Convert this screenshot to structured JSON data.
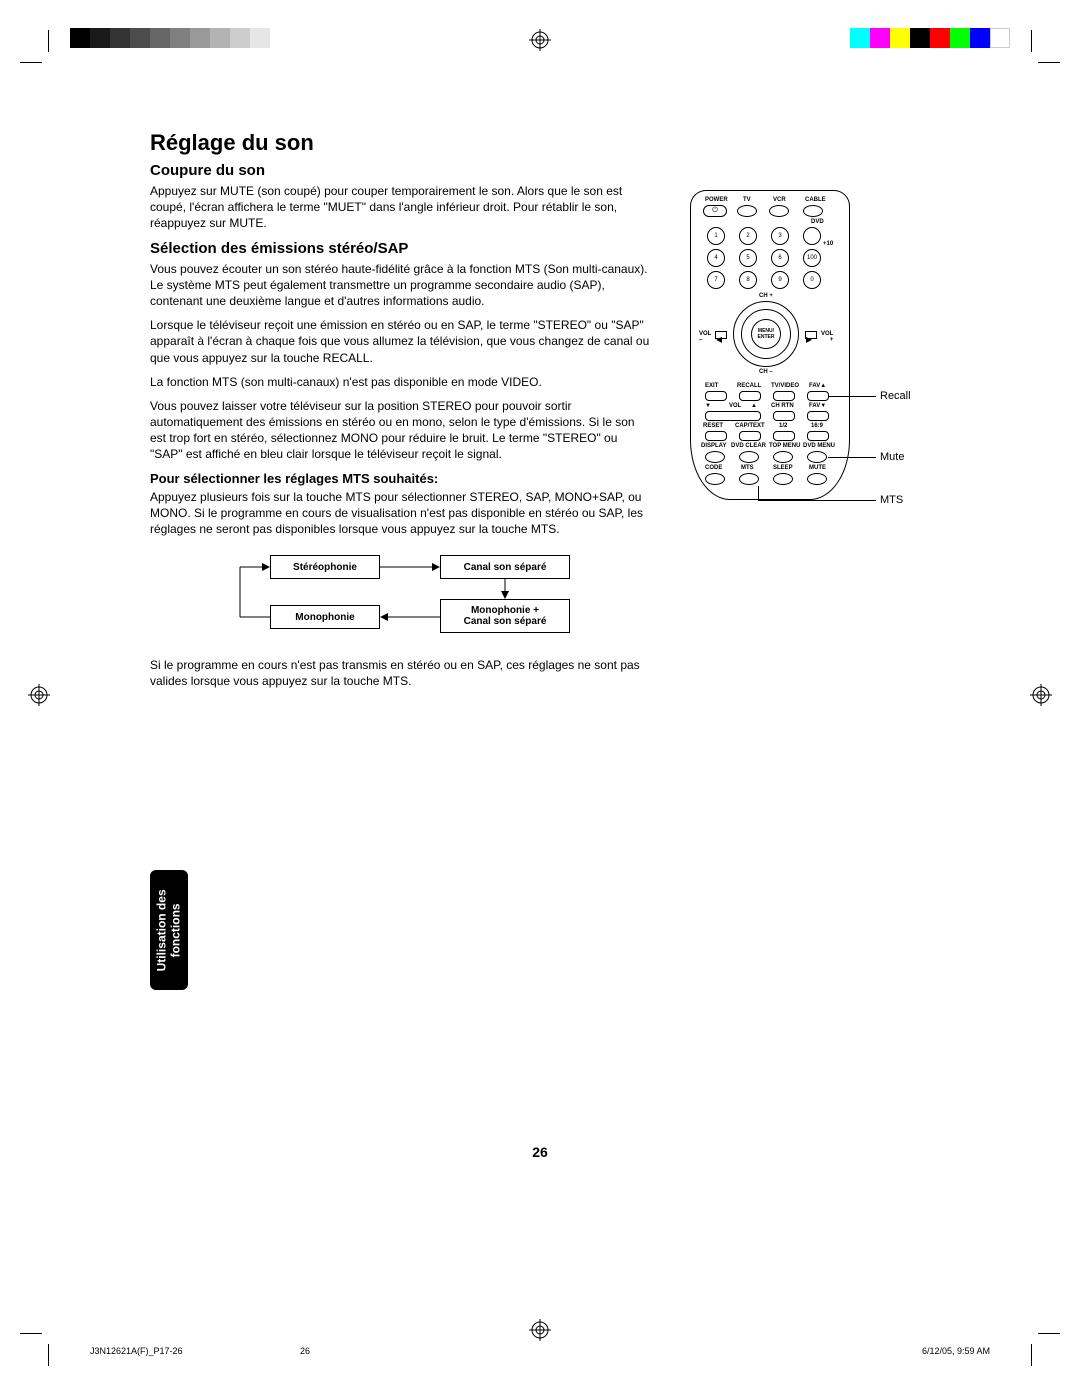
{
  "colorbars": {
    "grey": [
      "#000000",
      "#1a1a1a",
      "#333333",
      "#4d4d4d",
      "#666666",
      "#808080",
      "#999999",
      "#b3b3b3",
      "#cccccc",
      "#e6e6e6"
    ],
    "cmyk": [
      "#00ffff",
      "#ff00ff",
      "#ffff00",
      "#000000",
      "#ff0000",
      "#00ff00",
      "#0000ff",
      "#ffffff"
    ]
  },
  "title": "Réglage du son",
  "section1": {
    "heading": "Coupure du son",
    "p1": "Appuyez sur MUTE (son coupé) pour couper temporairement le son. Alors que le son est coupé, l'écran affichera le terme \"MUET\" dans l'angle inférieur droit. Pour rétablir le son, réappuyez sur MUTE."
  },
  "section2": {
    "heading": "Sélection des émissions stéréo/SAP",
    "p1": "Vous pouvez écouter un son stéréo haute-fidélité grâce à la fonction MTS (Son multi-canaux). Le système MTS peut également transmettre un programme secondaire audio (SAP), contenant une deuxième langue et d'autres informations audio.",
    "p2": "Lorsque le téléviseur reçoit une émission en stéréo ou en SAP, le terme \"STEREO\" ou \"SAP\" apparaît à l'écran à chaque fois que vous allumez la télévision, que vous changez de canal ou que vous appuyez sur la touche RECALL.",
    "p3": "La fonction MTS (son multi-canaux) n'est pas disponible en mode VIDEO.",
    "p4": "Vous pouvez laisser votre téléviseur sur la position STEREO pour pouvoir sortir automatiquement des émissions en stéréo ou en mono, selon le type d'émissions. Si le son est trop fort en stéréo, sélectionnez MONO pour réduire le bruit. Le terme \"STEREO\" ou \"SAP\" est affiché en bleu clair lorsque le téléviseur reçoit le signal."
  },
  "section3": {
    "heading": "Pour sélectionner les réglages MTS souhaités:",
    "p1": "Appuyez plusieurs fois sur la touche MTS pour sélectionner STEREO, SAP, MONO+SAP, ou MONO. Si le programme en cours de visualisation n'est pas disponible en stéréo ou SAP, les réglages ne seront pas disponibles lorsque vous appuyez sur la touche MTS.",
    "p2": "Si le programme en cours n'est pas transmis en stéréo ou en SAP, ces réglages ne sont pas valides lorsque vous appuyez sur la touche MTS."
  },
  "diagram": {
    "box1": "Stéréophonie",
    "box2": "Canal son séparé",
    "box3": "Monophonie",
    "box4_line1": "Monophonie +",
    "box4_line2": "Canal son séparé"
  },
  "remote": {
    "callout1": "Recall",
    "callout2": "Mute",
    "callout3": "MTS",
    "toprow_labels": [
      "POWER",
      "TV",
      "VCR",
      "CABLE"
    ],
    "dvd": "DVD",
    "plus10": "+10",
    "numbers": [
      "1",
      "2",
      "3",
      "4",
      "5",
      "6",
      "100",
      "7",
      "8",
      "9",
      "0"
    ],
    "ch_plus": "CH +",
    "ch_minus": "CH –",
    "vol_minus": "VOL –",
    "vol_plus": "VOL +",
    "menu": "MENU/\nENTER",
    "row_a_labels": [
      "EXIT",
      "RECALL",
      "TV/VIDEO",
      "FAV▲"
    ],
    "row_b_labels": [
      "▼",
      "VOL",
      "▲",
      "CH RTN",
      "FAV▼"
    ],
    "row_c_labels": [
      "RESET",
      "CAP/TEXT",
      "1/2",
      "16:9"
    ],
    "row_d_labels": [
      "DISPLAY",
      "DVD CLEAR",
      "TOP MENU",
      "DVD MENU"
    ],
    "row_e_labels": [
      "CODE",
      "MTS",
      "SLEEP",
      "MUTE"
    ]
  },
  "sidetab_line1": "Utilisation des",
  "sidetab_line2": "fonctions",
  "page_number": "26",
  "footer_left": "J3N12621A(F)_P17-26",
  "footer_mid": "26",
  "footer_right": "6/12/05, 9:59 AM"
}
